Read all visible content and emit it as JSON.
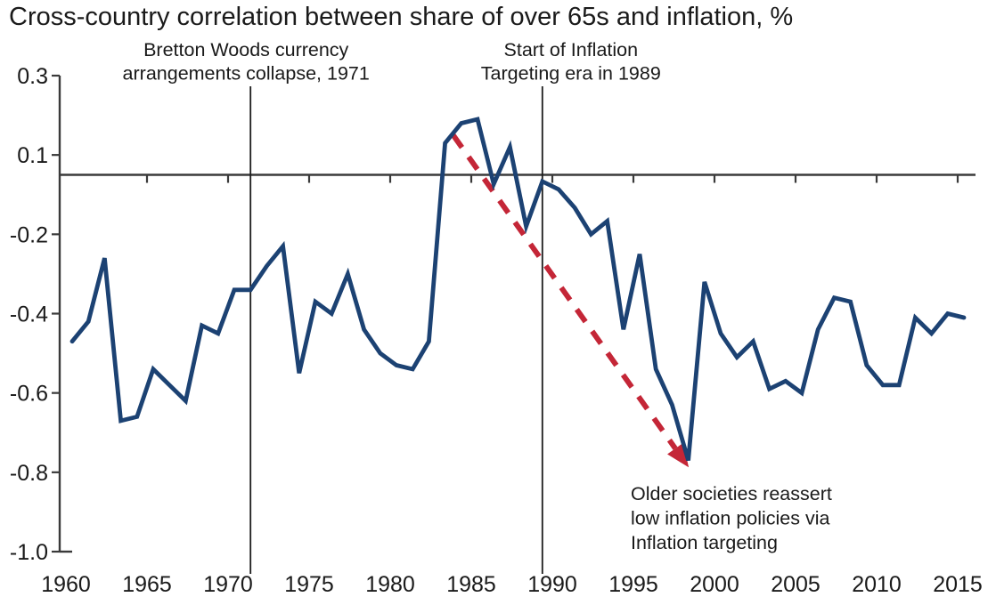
{
  "title": "Cross-country correlation between share of over 65s and inflation, %",
  "colors": {
    "line": "#1c4273",
    "arrow": "#c42637",
    "axis": "#3a3a3a",
    "event_line": "#1c1c1c",
    "text": "#1a1a1a"
  },
  "chart_data": {
    "type": "line",
    "title": "Cross-country correlation between share of over 65s and inflation, %",
    "xlabel": "",
    "ylabel": "%",
    "xlim": [
      1960,
      2015
    ],
    "ylim": [
      -1.0,
      0.3
    ],
    "grid": false,
    "legend": "none",
    "x_ticks": [
      1960,
      1965,
      1970,
      1975,
      1980,
      1985,
      1990,
      1995,
      2000,
      2005,
      2010,
      2015
    ],
    "y_ticks": [
      0.3,
      0.1,
      -0.2,
      -0.4,
      -0.6,
      -0.8,
      -1.0
    ],
    "y_tick_labels": [
      "0.3",
      "0.1",
      "-0.2",
      "-0.4",
      "-0.6",
      "-0.8",
      "-1.0"
    ],
    "x": [
      1960,
      1961,
      1962,
      1963,
      1964,
      1965,
      1966,
      1967,
      1968,
      1969,
      1970,
      1971,
      1972,
      1973,
      1974,
      1975,
      1976,
      1977,
      1978,
      1979,
      1980,
      1981,
      1982,
      1983,
      1984,
      1985,
      1986,
      1987,
      1988,
      1989,
      1990,
      1991,
      1992,
      1993,
      1994,
      1995,
      1996,
      1997,
      1998,
      1999,
      2000,
      2001,
      2002,
      2003,
      2004,
      2005,
      2006,
      2007,
      2008,
      2009,
      2010,
      2011,
      2012,
      2013,
      2014,
      2015
    ],
    "series": [
      {
        "name": "Cross-country correlation of over-65 population share and inflation",
        "values": [
          -0.47,
          -0.42,
          -0.26,
          -0.67,
          -0.66,
          -0.54,
          -0.58,
          -0.62,
          -0.43,
          -0.45,
          -0.34,
          -0.34,
          -0.28,
          -0.23,
          -0.55,
          -0.37,
          -0.4,
          -0.3,
          -0.44,
          -0.5,
          -0.53,
          -0.54,
          -0.47,
          0.13,
          0.18,
          0.19,
          -0.01,
          0.12,
          -0.17,
          0.0,
          -0.03,
          -0.1,
          -0.2,
          -0.15,
          -0.44,
          -0.25,
          -0.54,
          -0.63,
          -0.77,
          -0.32,
          -0.45,
          -0.51,
          -0.47,
          -0.59,
          -0.57,
          -0.6,
          -0.44,
          -0.36,
          -0.37,
          -0.53,
          -0.58,
          -0.58,
          -0.41,
          -0.45,
          -0.4,
          -0.41
        ]
      }
    ],
    "events": [
      {
        "year": 1971,
        "label_lines": [
          "Bretton Woods currency",
          "arrangements collapse, 1971"
        ],
        "label_dx": -5
      },
      {
        "year": 1989,
        "label_lines": [
          "Start of Inflation",
          "Targeting era in 1989"
        ],
        "label_dx": 32
      }
    ],
    "arrow": {
      "from": {
        "year": 1983.5,
        "value": 0.15
      },
      "to": {
        "year": 1997.2,
        "value": -0.74
      }
    },
    "annotation_lines": [
      "Older societies reassert",
      "low inflation policies via",
      "Inflation targeting"
    ]
  }
}
